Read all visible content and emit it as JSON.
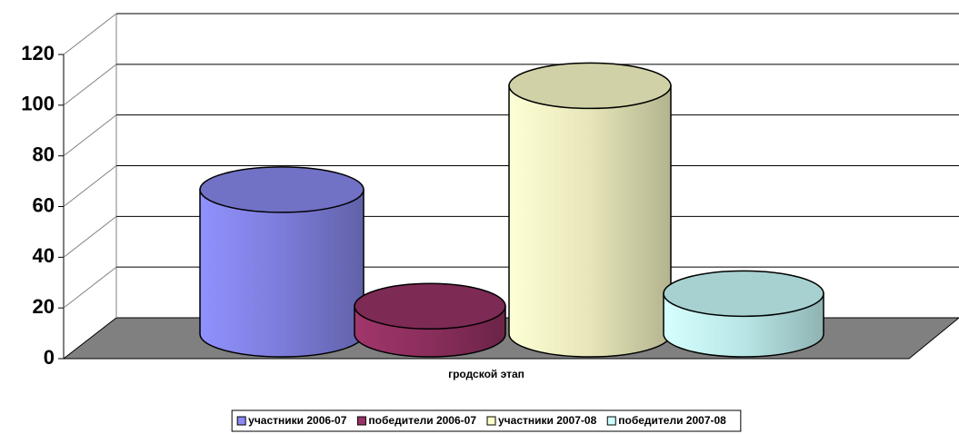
{
  "chart_data": {
    "type": "cylinder-bar",
    "categories": [
      "гродской этап"
    ],
    "series": [
      {
        "name": "участники 2006-07",
        "color": "#8a8af2",
        "values": [
          57
        ]
      },
      {
        "name": "победители 2006-07",
        "color": "#993366",
        "values": [
          11
        ]
      },
      {
        "name": "участники 2007-08",
        "color": "#ffffcc",
        "values": [
          98
        ]
      },
      {
        "name": "победители 2007-08",
        "color": "#ccffff",
        "values": [
          16
        ]
      }
    ],
    "ylim": [
      0,
      120
    ],
    "yticks": [
      0,
      20,
      40,
      60,
      80,
      100,
      120
    ],
    "grid": true,
    "legend": "bottom"
  }
}
